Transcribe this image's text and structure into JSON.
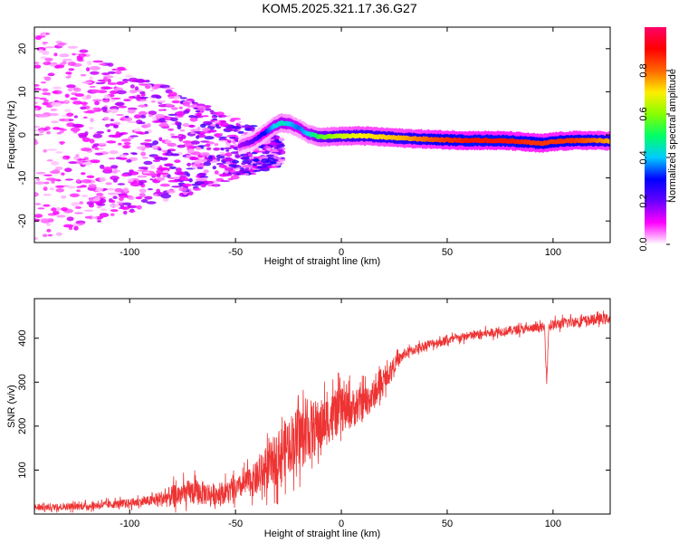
{
  "title": "KOM5.2025.321.17.36.G27",
  "chart_data": [
    {
      "type": "heatmap",
      "name": "spectrogram",
      "xlabel": "Height of straight line (km)",
      "ylabel": "Frequency (Hz)",
      "xlim": [
        -145,
        127
      ],
      "ylim": [
        -25,
        25
      ],
      "xticks": [
        -100,
        -50,
        0,
        50,
        100
      ],
      "yticks": [
        -20,
        -10,
        0,
        10,
        20
      ],
      "colorbar": {
        "label": "Normalized spectral amplitude",
        "range": [
          0,
          1
        ],
        "ticks": [
          "0.0",
          "0.2",
          "0.4",
          "0.6",
          "0.8"
        ],
        "tick_values": [
          0,
          0.2,
          0.4,
          0.6,
          0.8
        ],
        "colors": [
          "#ffffff",
          "#ff00ff",
          "#6600ff",
          "#0000ff",
          "#00ccff",
          "#00ff66",
          "#88ff00",
          "#ffee00",
          "#ff6600",
          "#ff0000",
          "#ff0066"
        ]
      },
      "ridge": {
        "x": [
          -48,
          -42,
          -36,
          -32,
          -28,
          -24,
          -20,
          -16,
          -10,
          0,
          10,
          20,
          30,
          40,
          50,
          60,
          70,
          80,
          90,
          95,
          100,
          110,
          120,
          127
        ],
        "freq_hz": [
          -2.5,
          -1.5,
          0.5,
          2,
          2.8,
          2.5,
          1.5,
          0.3,
          -0.5,
          -0.3,
          -0.2,
          -0.5,
          -0.8,
          -1,
          -1.2,
          -1.3,
          -1.3,
          -1.4,
          -1.8,
          -2,
          -1.6,
          -1.3,
          -1.3,
          -1.4
        ],
        "amplitude": [
          0.15,
          0.2,
          0.3,
          0.4,
          0.45,
          0.4,
          0.35,
          0.4,
          0.55,
          0.65,
          0.7,
          0.72,
          0.75,
          0.8,
          0.85,
          0.88,
          0.88,
          0.88,
          0.85,
          0.85,
          0.85,
          0.85,
          0.8,
          0.75
        ]
      },
      "scatter_region": {
        "x_range": [
          -145,
          -28
        ],
        "freq_spread_hz": [
          3,
          25
        ],
        "amplitude_range": [
          0.02,
          0.22
        ]
      }
    },
    {
      "type": "line",
      "name": "snr",
      "xlabel": "Height of straight line (km)",
      "ylabel": "SNR (v/v)",
      "xlim": [
        -145,
        127
      ],
      "ylim": [
        0,
        490
      ],
      "xticks": [
        -100,
        -50,
        0,
        50,
        100
      ],
      "yticks": [
        100,
        200,
        300,
        400
      ],
      "color": "#ee3333",
      "x": [
        -145,
        -120,
        -100,
        -90,
        -80,
        -70,
        -60,
        -50,
        -45,
        -40,
        -35,
        -30,
        -25,
        -20,
        -15,
        -10,
        -5,
        0,
        5,
        10,
        15,
        20,
        25,
        30,
        40,
        50,
        60,
        70,
        80,
        90,
        96,
        97,
        98,
        100,
        110,
        120,
        127
      ],
      "y": [
        15,
        18,
        25,
        30,
        40,
        50,
        45,
        55,
        70,
        80,
        105,
        130,
        160,
        175,
        190,
        200,
        220,
        235,
        240,
        250,
        270,
        300,
        340,
        365,
        385,
        395,
        405,
        412,
        418,
        422,
        425,
        300,
        428,
        430,
        438,
        442,
        445
      ],
      "noise_amplitude": [
        8,
        8,
        10,
        12,
        25,
        30,
        25,
        25,
        30,
        40,
        50,
        60,
        65,
        70,
        70,
        60,
        55,
        50,
        45,
        40,
        35,
        25,
        18,
        12,
        10,
        10,
        10,
        10,
        10,
        10,
        10,
        10,
        10,
        12,
        12,
        12,
        12
      ]
    }
  ]
}
